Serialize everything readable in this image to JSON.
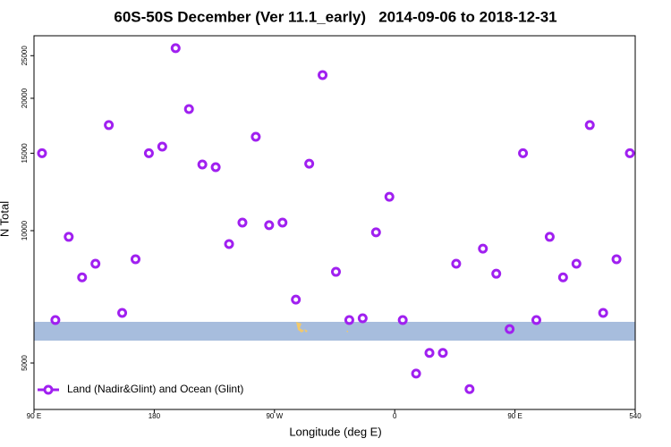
{
  "chart_data": {
    "type": "scatter",
    "title": "60S-50S December (Ver 11.1_early)   2014-09-06 to 2018-12-31",
    "xlabel": "Longitude (deg E)",
    "ylabel": "N Total",
    "ylog": true,
    "xlim": [
      90,
      540
    ],
    "ylim": [
      3920,
      27750
    ],
    "xticks": [
      {
        "value": 90,
        "label": "90 E"
      },
      180,
      {
        "value": 270,
        "label": "90 W"
      },
      {
        "value": 360,
        "label": "0"
      },
      {
        "value": 450,
        "label": "90 E"
      },
      540
    ],
    "yticks": [
      5000,
      10000,
      15000,
      20000,
      25000
    ],
    "legend": "bottom-left",
    "series": [
      {
        "name": "Land (Nadir&Glint) and Ocean (Glint)",
        "color": "#a020f0",
        "x": [
          96,
          106,
          116,
          126,
          136,
          146,
          156,
          166,
          176,
          186,
          196,
          206,
          216,
          226,
          236,
          246,
          256,
          266,
          276,
          286,
          296,
          306,
          316,
          326,
          336,
          346,
          356,
          366,
          376,
          386,
          396,
          406,
          416,
          426,
          436,
          446,
          456,
          466,
          476,
          486,
          496,
          506,
          516,
          526,
          536
        ],
        "values": [
          15000,
          6260,
          9680,
          7830,
          8410,
          17380,
          6500,
          8610,
          15000,
          15530,
          26000,
          18900,
          14140,
          13940,
          9320,
          10430,
          16350,
          10290,
          10430,
          6970,
          14200,
          22590,
          8060,
          6260,
          6320,
          9910,
          11940,
          6260,
          4730,
          5270,
          5270,
          8410,
          4360,
          9100,
          7980,
          5970,
          15000,
          6260,
          9680,
          7830,
          8410,
          17380,
          6500,
          8610,
          15000
        ]
      }
    ]
  }
}
